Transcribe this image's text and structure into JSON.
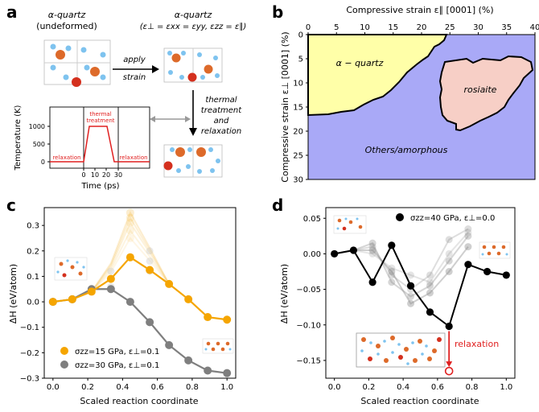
{
  "panels": {
    "a": {
      "label": "a",
      "undeformed_title_1": "α-quartz",
      "undeformed_title_2": "(undeformed)",
      "strained_title_1": "α-quartz",
      "strained_title_2": "(ε⊥ = εxx = εyy, εzz = ε∥)",
      "apply_label_1": "apply",
      "apply_label_2": "strain",
      "thermal_label": [
        "thermal",
        "treatment",
        "and",
        "relaxation"
      ],
      "inset": {
        "ylabel": "Temperature (K)",
        "xlabel": "Time (ps)",
        "yticks": [
          0,
          500,
          1000
        ],
        "xticks": [
          0,
          10,
          20,
          30
        ],
        "relaxation_left": "relaxation",
        "relaxation_right": "relaxation",
        "thermal_1": "thermal",
        "thermal_2": "treatment"
      }
    },
    "b": {
      "label": "b",
      "xlabel": "Compressive strain ε∥ [0001] (%)",
      "ylabel": "Compressive strain ε⊥ [0001] (%)",
      "xticks": [
        0,
        5,
        10,
        15,
        20,
        25,
        30,
        35,
        40
      ],
      "yticks": [
        0,
        5,
        10,
        15,
        20,
        25,
        30
      ],
      "region_quartz": "α − quartz",
      "region_rosiaite": "rosiaite",
      "region_other": "Others/amorphous",
      "colors": {
        "quartz": "#ffffa8",
        "rosiaite": "#f7cfc6",
        "other": "#a9a9f7"
      }
    },
    "c": {
      "label": "c",
      "ylabel": "ΔH (eV/atom)",
      "xlabel": "Scaled reaction coordinate",
      "legend": [
        "σzz=15 GPa, ε⊥=0.1",
        "σzz=30 GPa, ε⊥=0.1"
      ]
    },
    "d": {
      "label": "d",
      "ylabel": "ΔH (eV/atom)",
      "xlabel": "Scaled reaction coordinate",
      "legend": "σzz=40 GPa, ε⊥=0.0",
      "relaxation": "relaxation"
    }
  },
  "chart_data": [
    {
      "type": "line",
      "panel": "c",
      "x": [
        0.0,
        0.111,
        0.222,
        0.333,
        0.444,
        0.556,
        0.667,
        0.778,
        0.889,
        1.0
      ],
      "series": [
        {
          "name": "σzz=15 GPa, ε⊥=0.1",
          "color": "#f5a500",
          "values": [
            0.0,
            0.01,
            0.04,
            0.09,
            0.175,
            0.125,
            0.07,
            0.01,
            -0.06,
            -0.07
          ]
        },
        {
          "name": "σzz=30 GPa, ε⊥=0.1",
          "color": "#7f7f7f",
          "values": [
            0.0,
            0.01,
            0.05,
            0.05,
            0.0,
            -0.08,
            -0.17,
            -0.23,
            -0.27,
            -0.28
          ]
        }
      ],
      "ghost_peaks": [
        0.35,
        0.33,
        0.31,
        0.28,
        0.25
      ],
      "xlim": [
        -0.05,
        1.05
      ],
      "ylim": [
        -0.3,
        0.37
      ],
      "xticks": [
        0.0,
        0.2,
        0.4,
        0.6,
        0.8,
        1.0
      ],
      "yticks": [
        -0.3,
        -0.2,
        -0.1,
        0.0,
        0.1,
        0.2,
        0.3
      ],
      "xlabel": "Scaled reaction coordinate",
      "ylabel": "ΔH (eV/atom)"
    },
    {
      "type": "line",
      "panel": "d",
      "x": [
        0.0,
        0.111,
        0.222,
        0.333,
        0.444,
        0.556,
        0.667,
        0.778,
        0.889,
        1.0
      ],
      "series": [
        {
          "name": "σzz=40 GPa, ε⊥=0.0",
          "color": "#000000",
          "values": [
            0.0,
            0.005,
            -0.04,
            0.012,
            -0.045,
            -0.082,
            -0.102,
            -0.015,
            -0.025,
            -0.03
          ]
        }
      ],
      "relaxed_point": {
        "x": 0.667,
        "y": -0.165
      },
      "xlim": [
        -0.05,
        1.05
      ],
      "ylim": [
        -0.175,
        0.065
      ],
      "xticks": [
        0.0,
        0.2,
        0.4,
        0.6,
        0.8,
        1.0
      ],
      "yticks": [
        -0.15,
        -0.1,
        -0.05,
        0.0,
        0.05
      ],
      "xlabel": "Scaled reaction coordinate",
      "ylabel": "ΔH (eV/atom)"
    }
  ]
}
